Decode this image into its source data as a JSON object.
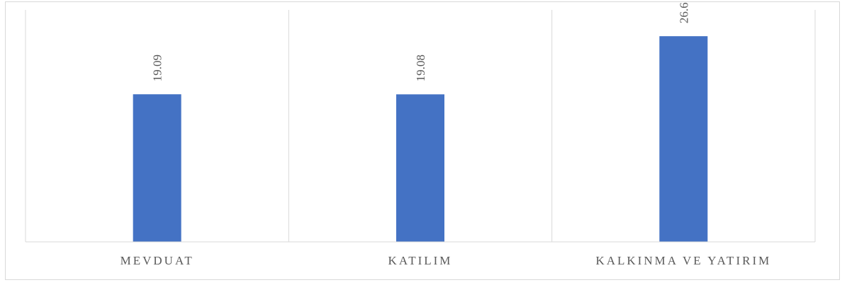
{
  "chart_data": {
    "type": "bar",
    "categories": [
      "MEVDUAT",
      "KATILIM",
      "KALKINMA VE YATIRIM"
    ],
    "values": [
      19.09,
      19.08,
      26.6
    ],
    "value_labels": [
      "19.09",
      "19.08",
      "26.6"
    ],
    "title": "",
    "xlabel": "",
    "ylabel": "",
    "ylim": [
      0,
      30
    ],
    "bar_color": "#4472C4",
    "grid": true,
    "legend": "none"
  }
}
